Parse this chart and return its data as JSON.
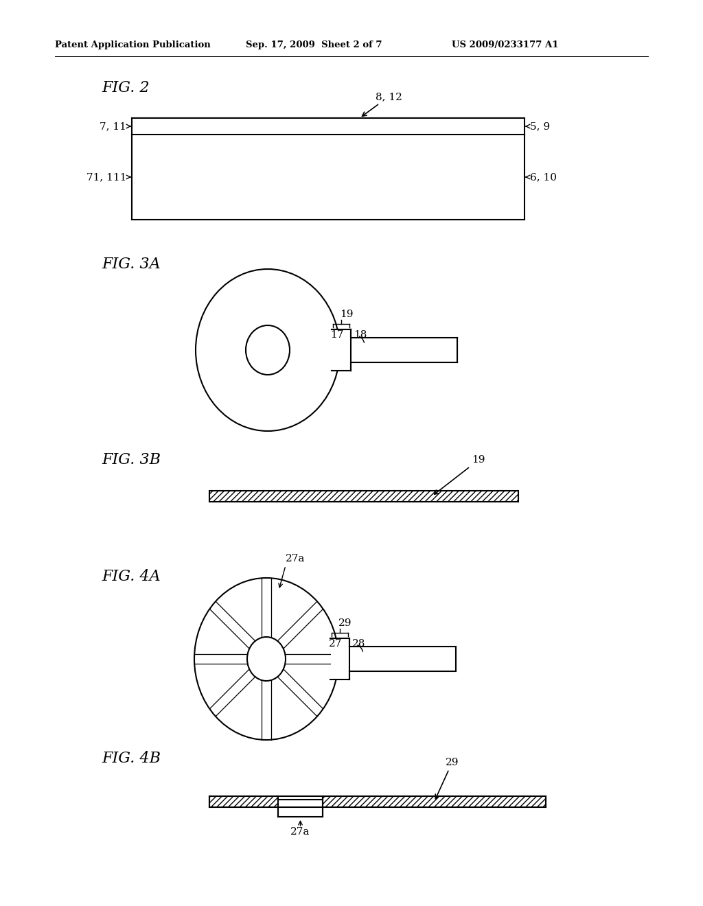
{
  "bg_color": "#ffffff",
  "header_left": "Patent Application Publication",
  "header_mid": "Sep. 17, 2009  Sheet 2 of 7",
  "header_right": "US 2009/0233177 A1",
  "fig2_title": "FIG. 2",
  "fig3a_title": "FIG. 3A",
  "fig3b_title": "FIG. 3B",
  "fig4a_title": "FIG. 4A",
  "fig4b_title": "FIG. 4B",
  "line_color": "#000000",
  "lw": 1.5
}
